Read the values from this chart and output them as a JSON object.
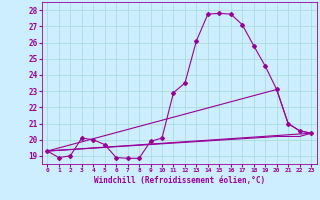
{
  "xlabel": "Windchill (Refroidissement éolien,°C)",
  "background_color": "#cceeff",
  "line_color": "#990099",
  "grid_color": "#aadddd",
  "xlim": [
    -0.5,
    23.5
  ],
  "ylim": [
    18.5,
    28.5
  ],
  "xticks": [
    0,
    1,
    2,
    3,
    4,
    5,
    6,
    7,
    8,
    9,
    10,
    11,
    12,
    13,
    14,
    15,
    16,
    17,
    18,
    19,
    20,
    21,
    22,
    23
  ],
  "yticks": [
    19,
    20,
    21,
    22,
    23,
    24,
    25,
    26,
    27,
    28
  ],
  "line1_x": [
    0,
    1,
    2,
    3,
    4,
    5,
    6,
    7,
    8,
    9,
    10,
    11,
    12,
    13,
    14,
    15,
    16,
    17,
    18,
    19,
    20,
    21,
    22,
    23
  ],
  "line1_y": [
    19.3,
    18.9,
    19.0,
    20.1,
    20.0,
    19.7,
    18.9,
    18.85,
    18.85,
    19.9,
    20.1,
    22.9,
    23.5,
    26.1,
    27.75,
    27.8,
    27.75,
    27.1,
    25.8,
    24.55,
    23.1,
    21.0,
    20.55,
    20.4
  ],
  "line2_x": [
    0,
    23
  ],
  "line2_y": [
    19.3,
    20.4
  ],
  "line3_x": [
    0,
    20,
    21,
    22,
    23
  ],
  "line3_y": [
    19.3,
    23.1,
    21.0,
    20.55,
    20.4
  ],
  "line4_x": [
    0,
    19,
    20,
    21,
    22,
    23
  ],
  "line4_y": [
    19.3,
    20.15,
    20.2,
    20.2,
    20.2,
    20.4
  ]
}
